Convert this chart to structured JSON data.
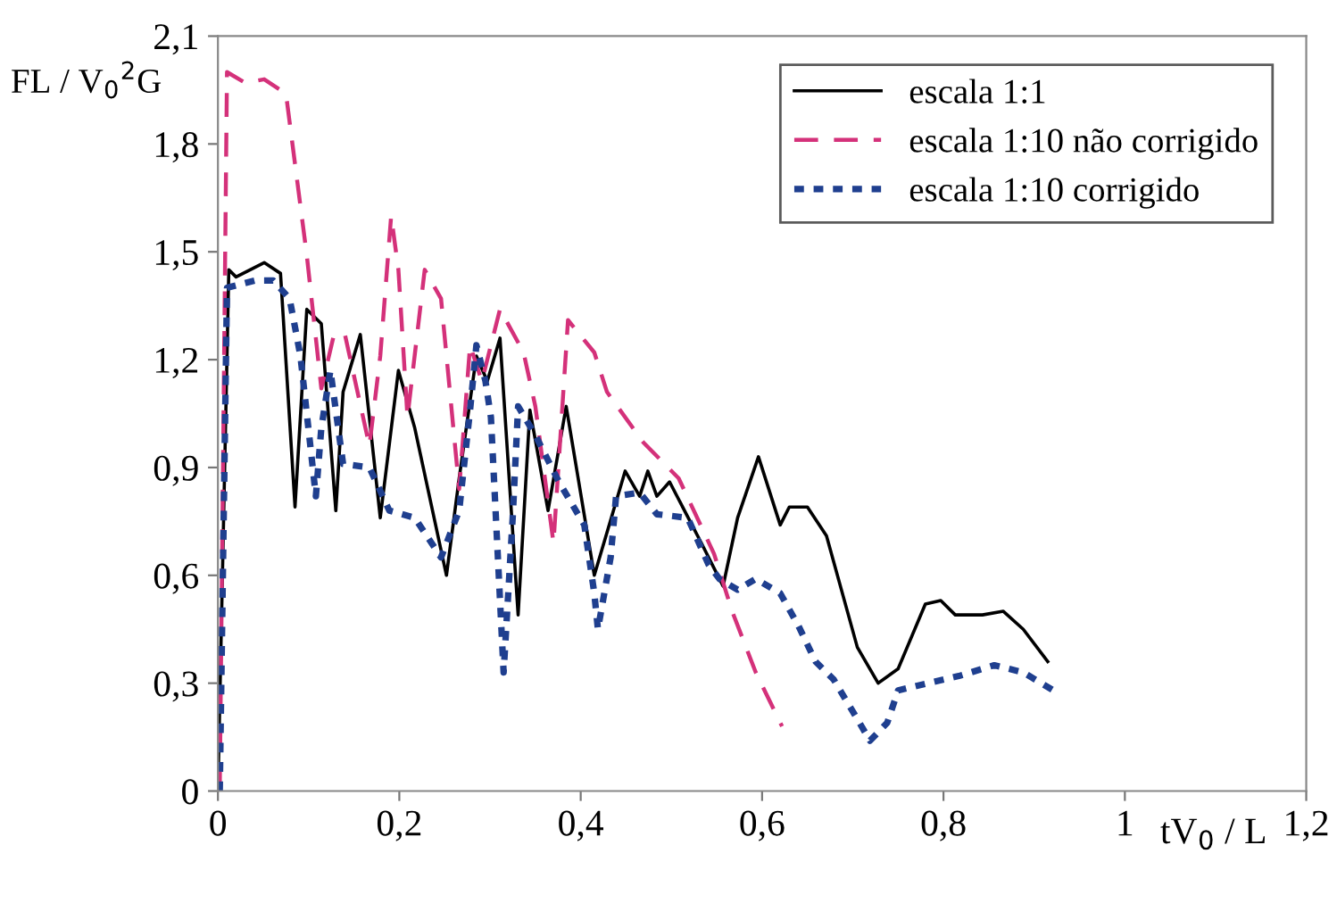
{
  "chart_data": {
    "type": "line",
    "xlabel": "tV$_{0}$ / L",
    "ylabel": "FL / V$_{0}$$^{2}$G",
    "xlim": [
      0,
      1.2
    ],
    "ylim": [
      0,
      2.1
    ],
    "xticks": [
      0,
      {
        "value": 0.2,
        "label": "0,2"
      },
      {
        "value": 0.4,
        "label": "0,4"
      },
      {
        "value": 0.6,
        "label": "0,6"
      },
      {
        "value": 0.8,
        "label": "0,8"
      },
      1,
      {
        "value": 1.2,
        "label": "1,2"
      }
    ],
    "yticks": [
      0,
      {
        "value": 0.3,
        "label": "0,3"
      },
      {
        "value": 0.6,
        "label": "0,6"
      },
      {
        "value": 0.9,
        "label": "0,9"
      },
      {
        "value": 1.2,
        "label": "1,2"
      },
      {
        "value": 1.5,
        "label": "1,5"
      },
      {
        "value": 1.8,
        "label": "1,8"
      },
      {
        "value": 2.1,
        "label": "2,1"
      }
    ],
    "grid": false,
    "legend": "top right",
    "series": [
      {
        "name": "escala 1:1",
        "color": "#000000",
        "line_style": "solid",
        "x": [
          0,
          0.012,
          0.02,
          0.051,
          0.069,
          0.085,
          0.098,
          0.114,
          0.13,
          0.138,
          0.157,
          0.179,
          0.199,
          0.217,
          0.252,
          0.266,
          0.285,
          0.297,
          0.311,
          0.331,
          0.344,
          0.364,
          0.384,
          0.415,
          0.449,
          0.465,
          0.474,
          0.484,
          0.498,
          0.533,
          0.557,
          0.573,
          0.596,
          0.62,
          0.63,
          0.65,
          0.671,
          0.705,
          0.728,
          0.75,
          0.78,
          0.797,
          0.813,
          0.843,
          0.866,
          0.888,
          0.915
        ],
        "values": [
          0,
          1.45,
          1.43,
          1.47,
          1.44,
          0.79,
          1.34,
          1.3,
          0.78,
          1.11,
          1.27,
          0.76,
          1.17,
          1.01,
          0.6,
          0.87,
          1.21,
          1.14,
          1.26,
          0.49,
          1.06,
          0.78,
          1.07,
          0.6,
          0.89,
          0.82,
          0.89,
          0.82,
          0.86,
          0.69,
          0.57,
          0.76,
          0.93,
          0.74,
          0.79,
          0.79,
          0.71,
          0.4,
          0.3,
          0.34,
          0.52,
          0.53,
          0.49,
          0.49,
          0.5,
          0.45,
          0.36
        ]
      },
      {
        "name": "escala 1:10 não corrigido",
        "color": "#d4317a",
        "line_style": "dashed",
        "x": [
          0.002,
          0.01,
          0.03,
          0.051,
          0.075,
          0.098,
          0.114,
          0.128,
          0.14,
          0.167,
          0.179,
          0.191,
          0.199,
          0.209,
          0.228,
          0.246,
          0.266,
          0.278,
          0.291,
          0.311,
          0.337,
          0.35,
          0.37,
          0.386,
          0.415,
          0.429,
          0.469,
          0.508,
          0.547,
          0.567,
          0.593,
          0.622
        ],
        "values": [
          0,
          2.0,
          1.97,
          1.98,
          1.94,
          1.49,
          1.12,
          1.27,
          1.27,
          0.96,
          1.21,
          1.6,
          1.45,
          1.04,
          1.45,
          1.37,
          0.84,
          1.24,
          1.14,
          1.34,
          1.22,
          1.07,
          0.69,
          1.31,
          1.22,
          1.11,
          0.97,
          0.87,
          0.66,
          0.5,
          0.33,
          0.18
        ]
      },
      {
        "name": "escala 1:10 corrigido",
        "color": "#1f3f8f",
        "line_style": "dotted",
        "x": [
          0.002,
          0.01,
          0.041,
          0.061,
          0.079,
          0.091,
          0.108,
          0.114,
          0.124,
          0.138,
          0.167,
          0.189,
          0.217,
          0.246,
          0.266,
          0.278,
          0.285,
          0.295,
          0.301,
          0.315,
          0.325,
          0.331,
          0.35,
          0.376,
          0.404,
          0.415,
          0.419,
          0.433,
          0.439,
          0.465,
          0.484,
          0.518,
          0.541,
          0.553,
          0.573,
          0.593,
          0.62,
          0.64,
          0.659,
          0.679,
          0.705,
          0.719,
          0.738,
          0.75,
          0.783,
          0.817,
          0.856,
          0.888,
          0.921
        ],
        "values": [
          0,
          1.4,
          1.42,
          1.42,
          1.37,
          1.21,
          0.82,
          1.01,
          1.17,
          0.91,
          0.9,
          0.78,
          0.76,
          0.65,
          0.78,
          1.06,
          1.24,
          1.14,
          1.04,
          0.33,
          0.76,
          1.07,
          0.99,
          0.86,
          0.74,
          0.55,
          0.45,
          0.65,
          0.82,
          0.83,
          0.77,
          0.76,
          0.63,
          0.59,
          0.56,
          0.59,
          0.55,
          0.46,
          0.36,
          0.31,
          0.2,
          0.14,
          0.19,
          0.28,
          0.3,
          0.32,
          0.35,
          0.33,
          0.28
        ]
      }
    ]
  }
}
